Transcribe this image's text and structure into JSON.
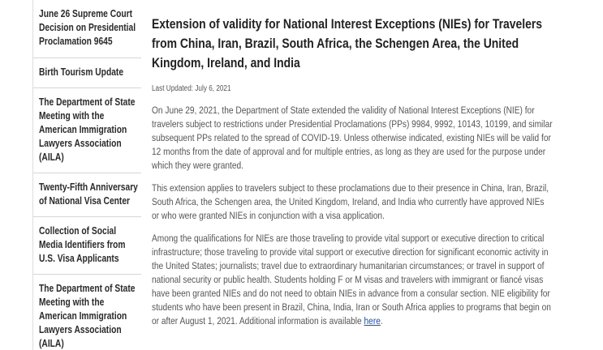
{
  "sidebar": {
    "items": [
      "June 26 Supreme Court Decision on Presidential Proclamation 9645",
      "Birth Tourism Update",
      "The Department of State Meeting with the American Immigration Lawyers Association (AILA)",
      "Twenty-Fifth Anniversary of National Visa Center",
      "Collection of Social Media Identifiers from U.S. Visa Applicants",
      "The Department of State Meeting with the American Immigration Lawyers Association (AILA)"
    ]
  },
  "article": {
    "title": "Extension of validity for National Interest Exceptions (NIEs) for Travelers from China, Iran, Brazil, South Africa, the Schengen Area, the United Kingdom, Ireland, and India",
    "updated": "Last Updated: July 6, 2021",
    "paragraphs": [
      "On June 29, 2021, the Department of State extended the validity of National Interest Exceptions (NIE) for travelers subject to restrictions under Presidential Proclamations (PPs) 9984, 9992, 10143, 10199, and similar subsequent PPs related to the spread of COVID-19. Unless otherwise indicated, existing NIEs will be valid for 12 months from the date of approval and for multiple entries, as long as they are used for the purpose under which they were granted.",
      "This extension applies to travelers subject to these proclamations due to their presence in China, Iran, Brazil, South Africa, the Schengen area, the United Kingdom, Ireland, and India who currently have approved NIEs or who were granted NIEs in conjunction with a visa application."
    ],
    "last_paragraph": {
      "text": "Among the qualifications for NIEs are those traveling to provide vital support or executive direction to critical infrastructure; those traveling to provide vital support or executive direction for significant economic activity in the United States; journalists; travel due to extraordinary humanitarian circumstances; or travel in support of national security or public health. Students holding F or M visas and travelers with immigrant or fiancé visas have been granted NIEs and do not need to obtain NIEs in advance from a consular section. NIE eligibility for students who have been present in Brazil, China, India, Iran or South Africa applies to programs that begin on or after August 1, 2021. Additional information is available ",
      "link": "here",
      "end": "."
    }
  }
}
